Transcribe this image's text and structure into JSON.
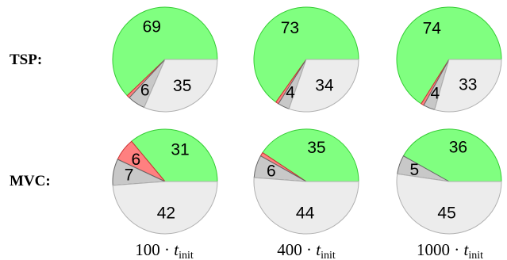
{
  "chart_data": {
    "type": "pie",
    "rows": [
      {
        "label": "TSP:",
        "pies": [
          {
            "values": [
              69,
              1,
              6,
              35
            ],
            "labels": [
              "69",
              "",
              "6",
              "35"
            ]
          },
          {
            "values": [
              73,
              1,
              4,
              34
            ],
            "labels": [
              "73",
              "",
              "4",
              "34"
            ]
          },
          {
            "values": [
              74,
              1,
              4,
              33
            ],
            "labels": [
              "74",
              "",
              "4",
              "33"
            ]
          }
        ]
      },
      {
        "label": "MVC:",
        "pies": [
          {
            "values": [
              31,
              6,
              7,
              42
            ],
            "labels": [
              "31",
              "6",
              "7",
              "42"
            ]
          },
          {
            "values": [
              35,
              1,
              6,
              44
            ],
            "labels": [
              "35",
              "",
              "6",
              "44"
            ]
          },
          {
            "values": [
              36,
              0,
              5,
              45
            ],
            "labels": [
              "36",
              "",
              "5",
              "45"
            ]
          }
        ]
      }
    ],
    "columns": [
      {
        "mult": "100",
        "dot": "·",
        "var": "t",
        "sub": "init"
      },
      {
        "mult": "400",
        "dot": "·",
        "var": "t",
        "sub": "init"
      },
      {
        "mult": "1000",
        "dot": "·",
        "var": "t",
        "sub": "init"
      }
    ],
    "slice_colors": {
      "fill": [
        "#80ff80",
        "#ff8080",
        "#c8c8c8",
        "#ececec"
      ],
      "stroke": [
        "#33cc33",
        "#cc3333",
        "#666666",
        "#b0b0b0"
      ]
    }
  }
}
